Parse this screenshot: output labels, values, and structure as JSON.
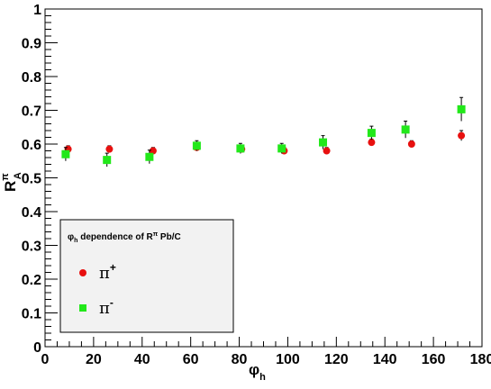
{
  "chart_data": {
    "type": "scatter",
    "xlabel": "φ",
    "xlabel_sub": "h",
    "ylabel": "R",
    "ylabel_sup": "π",
    "ylabel_sub": "A",
    "xlim": [
      0,
      180
    ],
    "ylim": [
      0,
      1
    ],
    "x_ticks": [
      "0",
      "20",
      "40",
      "60",
      "80",
      "100",
      "120",
      "140",
      "160",
      "180"
    ],
    "y_ticks": [
      "0",
      "0.1",
      "0.2",
      "0.3",
      "0.4",
      "0.5",
      "0.6",
      "0.7",
      "0.8",
      "0.9",
      "1"
    ],
    "grid": false,
    "legend": {
      "placement": "bottom-left",
      "title_main": "φ",
      "title_sub": "h",
      "title_rest": " dependence of R",
      "title_sup": "π",
      "title_end": " Pb/C"
    },
    "series": [
      {
        "name": "π",
        "sup": "+",
        "marker": "circle",
        "color": "#e8100f",
        "points": [
          {
            "x": 9.5,
            "y": 0.585,
            "err": 0.01
          },
          {
            "x": 26.5,
            "y": 0.585,
            "err": 0.01
          },
          {
            "x": 44.5,
            "y": 0.58,
            "err": 0.01
          },
          {
            "x": 62.5,
            "y": 0.59,
            "err": 0.01
          },
          {
            "x": 81.0,
            "y": 0.585,
            "err": 0.01
          },
          {
            "x": 98.5,
            "y": 0.58,
            "err": 0.01
          },
          {
            "x": 116.0,
            "y": 0.58,
            "err": 0.01
          },
          {
            "x": 134.5,
            "y": 0.605,
            "err": 0.01
          },
          {
            "x": 151.0,
            "y": 0.6,
            "err": 0.01
          },
          {
            "x": 171.5,
            "y": 0.625,
            "err": 0.015
          }
        ]
      },
      {
        "name": "π",
        "sup": "-",
        "marker": "square",
        "color": "#22e81a",
        "points": [
          {
            "x": 8.5,
            "y": 0.57,
            "err": 0.02
          },
          {
            "x": 25.5,
            "y": 0.553,
            "err": 0.02
          },
          {
            "x": 43.0,
            "y": 0.562,
            "err": 0.02
          },
          {
            "x": 62.5,
            "y": 0.595,
            "err": 0.015
          },
          {
            "x": 80.5,
            "y": 0.587,
            "err": 0.015
          },
          {
            "x": 97.5,
            "y": 0.587,
            "err": 0.015
          },
          {
            "x": 114.5,
            "y": 0.605,
            "err": 0.02
          },
          {
            "x": 134.5,
            "y": 0.633,
            "err": 0.02
          },
          {
            "x": 148.5,
            "y": 0.643,
            "err": 0.025
          },
          {
            "x": 171.5,
            "y": 0.703,
            "err": 0.035
          }
        ]
      }
    ]
  }
}
